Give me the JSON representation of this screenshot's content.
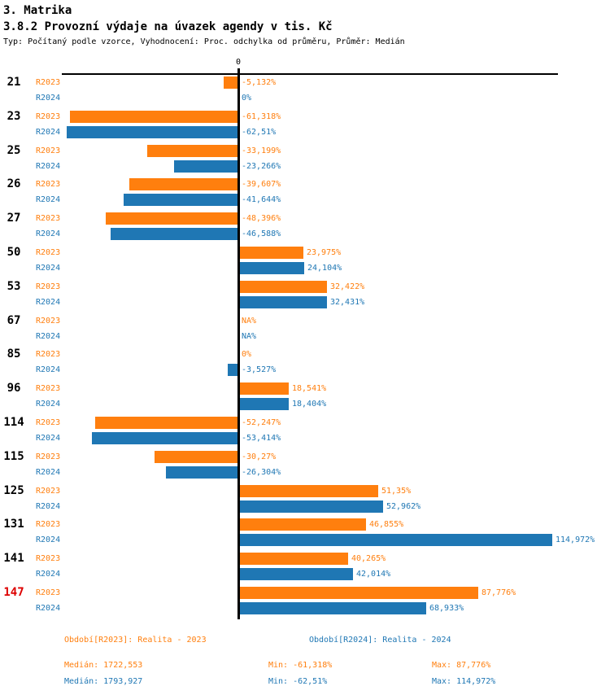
{
  "header": {
    "title1": "3. Matrika",
    "title2": "3.8.2 Provozní výdaje na úvazek agendy v tis. Kč",
    "subtitle": "Typ: Počítaný podle vzorce, Vyhodnocení: Proc. odchylka od průměru, Průměr: Medián"
  },
  "axis": {
    "zero_label": "0"
  },
  "colors": {
    "r2023": "#ff7f0e",
    "r2024": "#1f77b4",
    "highlight_category": "#dd0000",
    "category": "#000000",
    "axis": "#000000"
  },
  "chart_data": {
    "type": "bar",
    "orientation": "horizontal",
    "xlabel": "",
    "ylabel": "",
    "xlim": [
      -64.5,
      117.5
    ],
    "value_suffix": "%",
    "grid": false,
    "categories": [
      "21",
      "23",
      "25",
      "26",
      "27",
      "50",
      "53",
      "67",
      "85",
      "96",
      "114",
      "115",
      "125",
      "131",
      "141",
      "147"
    ],
    "highlight_category": "147",
    "series": [
      {
        "name": "R2023",
        "color": "#ff7f0e",
        "values": [
          -5.132,
          -61.318,
          -33.199,
          -39.607,
          -48.396,
          23.975,
          32.422,
          null,
          0,
          18.541,
          -52.247,
          -30.27,
          51.35,
          46.855,
          40.265,
          87.776
        ],
        "labels": [
          "-5,132%",
          "-61,318%",
          "-33,199%",
          "-39,607%",
          "-48,396%",
          "23,975%",
          "32,422%",
          "NA%",
          "0%",
          "18,541%",
          "-52,247%",
          "-30,27%",
          "51,35%",
          "46,855%",
          "40,265%",
          "87,776%"
        ]
      },
      {
        "name": "R2024",
        "color": "#1f77b4",
        "values": [
          0,
          -62.51,
          -23.266,
          -41.644,
          -46.588,
          24.104,
          32.431,
          null,
          -3.527,
          18.404,
          -53.414,
          -26.304,
          52.962,
          114.972,
          42.014,
          68.933
        ],
        "labels": [
          "0%",
          "-62,51%",
          "-23,266%",
          "-41,644%",
          "-46,588%",
          "24,104%",
          "32,431%",
          "NA%",
          "-3,527%",
          "18,404%",
          "-53,414%",
          "-26,304%",
          "52,962%",
          "114,972%",
          "42,014%",
          "68,933%"
        ]
      }
    ]
  },
  "footer": {
    "legends": [
      {
        "label": "Období[R2023]: Realita - 2023"
      },
      {
        "label": "Období[R2024]: Realita - 2024"
      }
    ],
    "stats_rows": [
      {
        "median": "Medián: 1722,553",
        "min": "Min: -61,318%",
        "max": "Max: 87,776%"
      },
      {
        "median": "Medián: 1793,927",
        "min": "Min: -62,51%",
        "max": "Max: 114,972%"
      }
    ]
  }
}
